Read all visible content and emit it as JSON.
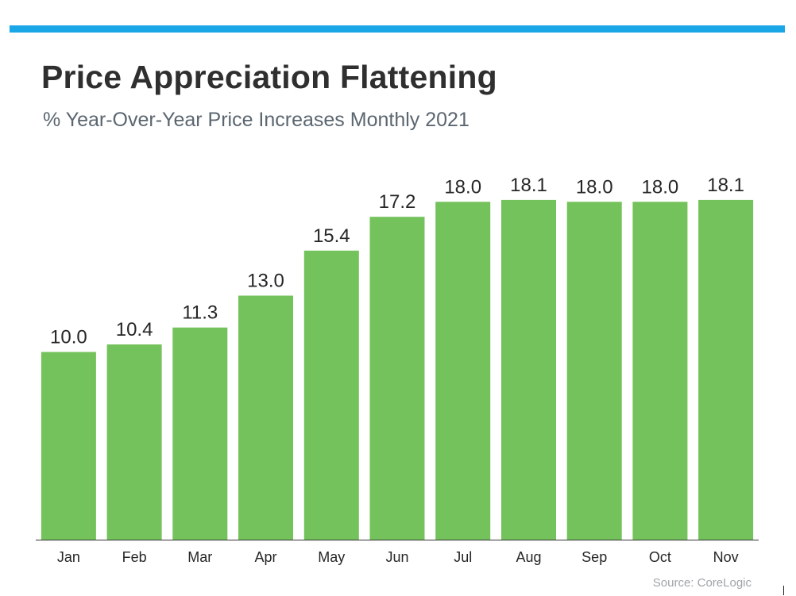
{
  "header": {
    "title": "Price Appreciation Flattening",
    "subtitle": "% Year-Over-Year Price Increases Monthly 2021"
  },
  "footer": {
    "source": "Source: CoreLogic"
  },
  "colors": {
    "accent_bar": "#1aa7e8",
    "bar_fill": "#74c25b",
    "axis": "#333333"
  },
  "chart_data": {
    "type": "bar",
    "title": "Price Appreciation Flattening",
    "subtitle": "% Year-Over-Year Price Increases Monthly 2021",
    "categories": [
      "Jan",
      "Feb",
      "Mar",
      "Apr",
      "May",
      "Jun",
      "Jul",
      "Aug",
      "Sep",
      "Oct",
      "Nov"
    ],
    "values": [
      10.0,
      10.4,
      11.3,
      13.0,
      15.4,
      17.2,
      18.0,
      18.1,
      18.0,
      18.0,
      18.1
    ],
    "data_labels": [
      "10.0",
      "10.4",
      "11.3",
      "13.0",
      "15.4",
      "17.2",
      "18.0",
      "18.1",
      "18.0",
      "18.0",
      "18.1"
    ],
    "xlabel": "",
    "ylabel": "",
    "ylim": [
      0,
      18.9
    ],
    "grid": false,
    "legend": "none",
    "source": "Source: CoreLogic"
  }
}
